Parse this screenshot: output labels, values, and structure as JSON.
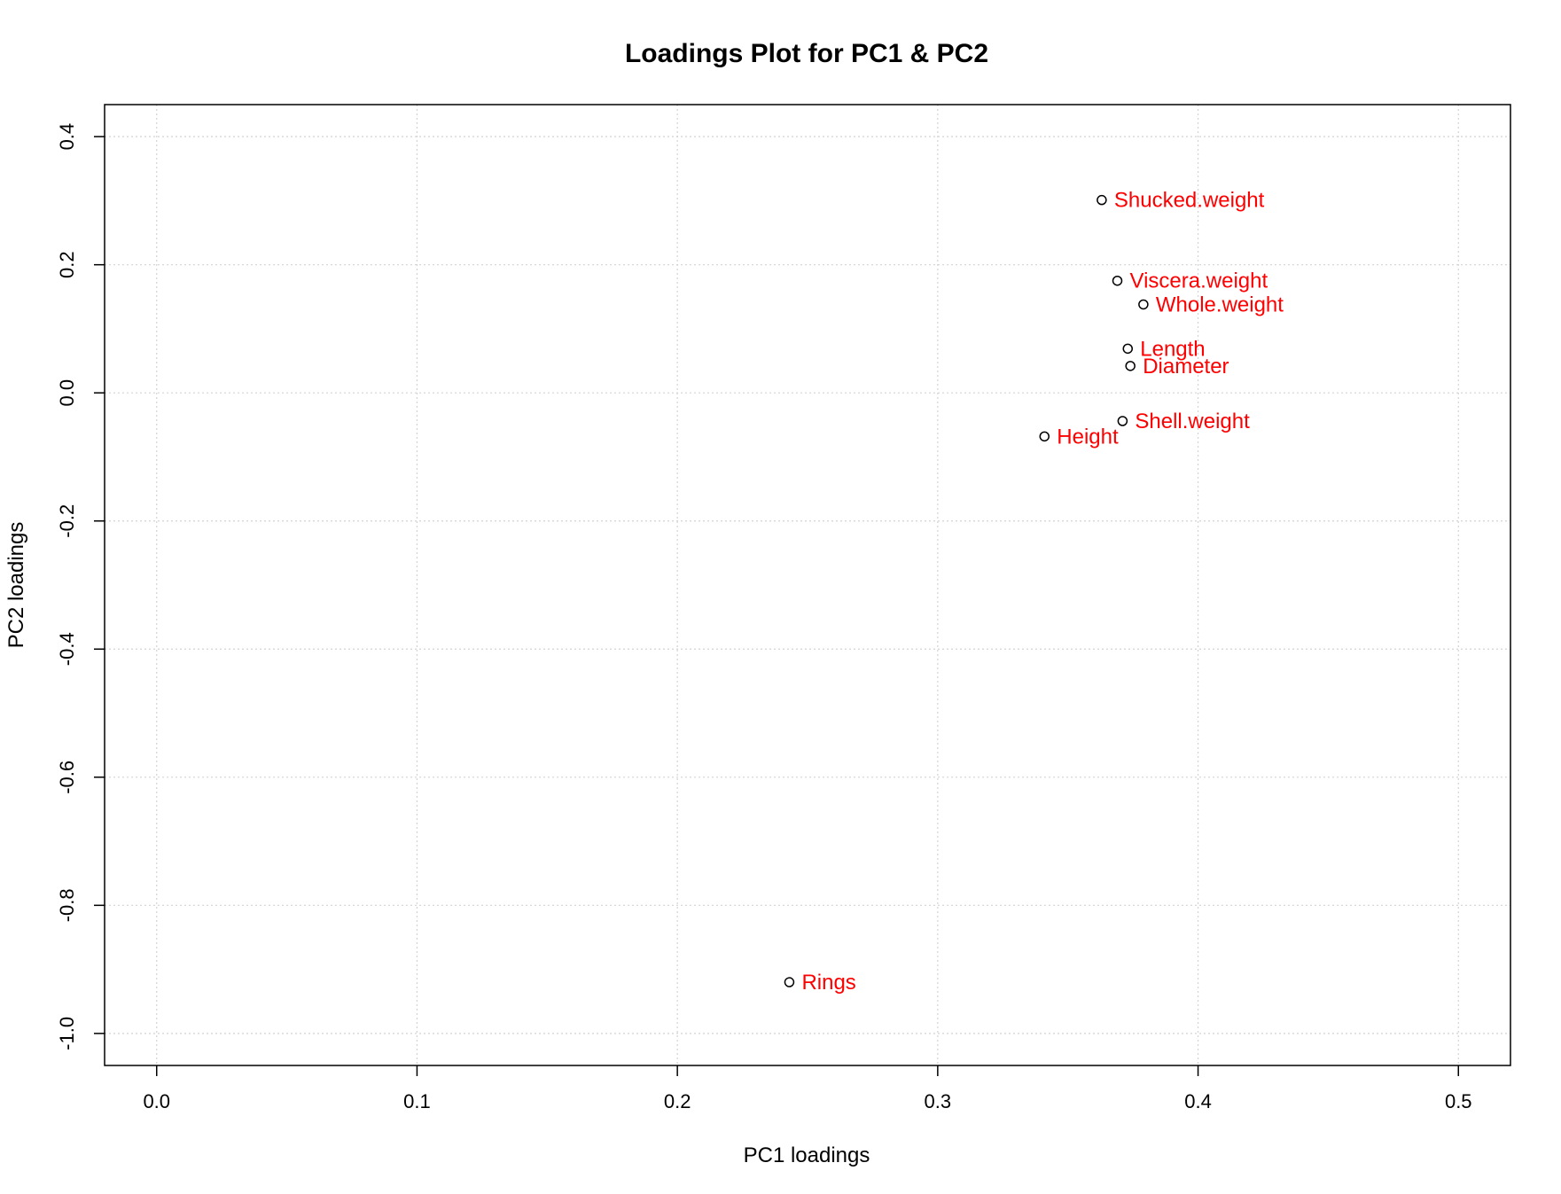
{
  "chart_data": {
    "type": "scatter",
    "title": "Loadings Plot for PC1 & PC2",
    "xlabel": "PC1 loadings",
    "ylabel": "PC2 loadings",
    "xlim": [
      -0.02,
      0.52
    ],
    "ylim": [
      -1.05,
      0.45
    ],
    "x_ticks": [
      0.0,
      0.1,
      0.2,
      0.3,
      0.4,
      0.5
    ],
    "x_tick_labels": [
      "0.0",
      "0.1",
      "0.2",
      "0.3",
      "0.4",
      "0.5"
    ],
    "y_ticks": [
      -1.0,
      -0.8,
      -0.6,
      -0.4,
      -0.2,
      0.0,
      0.2,
      0.4
    ],
    "y_tick_labels": [
      "-1.0",
      "-0.8",
      "-0.6",
      "-0.4",
      "-0.2",
      "0.0",
      "0.2",
      "0.4"
    ],
    "grid": true,
    "colors": {
      "points": "#000000",
      "labels": "#ff0000",
      "grid": "#d3d3d3"
    },
    "points": [
      {
        "label": "Shucked.weight",
        "x": 0.363,
        "y": 0.301
      },
      {
        "label": "Viscera.weight",
        "x": 0.369,
        "y": 0.175
      },
      {
        "label": "Whole.weight",
        "x": 0.379,
        "y": 0.138
      },
      {
        "label": "Length",
        "x": 0.373,
        "y": 0.069
      },
      {
        "label": "Diameter",
        "x": 0.374,
        "y": 0.042
      },
      {
        "label": "Shell.weight",
        "x": 0.371,
        "y": -0.044
      },
      {
        "label": "Height",
        "x": 0.341,
        "y": -0.068
      },
      {
        "label": "Rings",
        "x": 0.243,
        "y": -0.92
      }
    ]
  }
}
